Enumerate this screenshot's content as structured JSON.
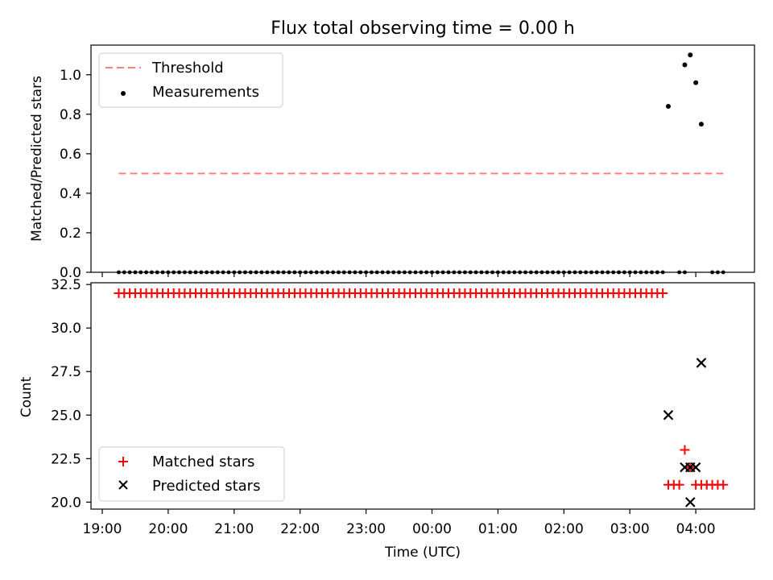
{
  "chart_data": [
    {
      "type": "scatter",
      "title": "Flux total observing time = 0.00 h",
      "ylabel": "Matched/Predicted stars",
      "xlabel": "",
      "ylim": [
        0,
        1.15
      ],
      "y_ticks": [
        "0.0",
        "0.2",
        "0.4",
        "0.6",
        "0.8",
        "1.0"
      ],
      "y_tick_values": [
        0,
        0.2,
        0.4,
        0.6,
        0.8,
        1.0
      ],
      "grid": false,
      "legend_position": "top-left",
      "legend": [
        "Threshold",
        "Measurements"
      ],
      "threshold": {
        "name": "Threshold",
        "value": 0.5,
        "x_range": [
          "19:15",
          "04:25"
        ],
        "color": "#ff7f7f",
        "style": "dashed"
      },
      "series": [
        {
          "name": "Measurements",
          "marker": "dot",
          "color": "#000000",
          "zero_segments": [
            [
              "19:15",
              "20:55",
              5
            ],
            [
              "21:00",
              "03:30",
              5
            ],
            [
              "03:45",
              "03:50",
              5
            ],
            [
              "04:15",
              "04:25",
              5
            ]
          ],
          "points": [
            {
              "x": "03:35",
              "y": 0.84
            },
            {
              "x": "03:50",
              "y": 1.05
            },
            {
              "x": "03:55",
              "y": 1.1
            },
            {
              "x": "04:00",
              "y": 0.96
            },
            {
              "x": "04:05",
              "y": 0.75
            }
          ]
        }
      ]
    },
    {
      "type": "scatter",
      "xlabel": "Time (UTC)",
      "ylabel": "Count",
      "ylim": [
        19.6,
        32.6
      ],
      "y_ticks": [
        "20.0",
        "22.5",
        "25.0",
        "27.5",
        "30.0",
        "32.5"
      ],
      "y_tick_values": [
        20,
        22.5,
        25,
        27.5,
        30,
        32.5
      ],
      "x_ticks": [
        "19:00",
        "20:00",
        "21:00",
        "22:00",
        "23:00",
        "00:00",
        "01:00",
        "02:00",
        "03:00",
        "04:00"
      ],
      "grid": false,
      "legend_position": "lower-left",
      "legend": [
        "Matched stars",
        "Predicted stars"
      ],
      "series": [
        {
          "name": "Matched stars",
          "marker": "plus",
          "color": "#ff0000",
          "segments": [
            {
              "from": "19:15",
              "to": "03:30",
              "step_min": 5,
              "y": 32
            }
          ],
          "points": [
            {
              "x": "03:35",
              "y": 21
            },
            {
              "x": "03:40",
              "y": 21
            },
            {
              "x": "03:45",
              "y": 21
            },
            {
              "x": "03:50",
              "y": 23
            },
            {
              "x": "03:55",
              "y": 22
            },
            {
              "x": "04:00",
              "y": 21
            },
            {
              "x": "04:05",
              "y": 21
            },
            {
              "x": "04:10",
              "y": 21
            },
            {
              "x": "04:15",
              "y": 21
            },
            {
              "x": "04:20",
              "y": 21
            },
            {
              "x": "04:25",
              "y": 21
            }
          ]
        },
        {
          "name": "Predicted stars",
          "marker": "x",
          "color": "#000000",
          "points": [
            {
              "x": "03:35",
              "y": 25
            },
            {
              "x": "03:50",
              "y": 22
            },
            {
              "x": "03:55",
              "y": 22
            },
            {
              "x": "03:55",
              "y": 20
            },
            {
              "x": "04:00",
              "y": 22
            },
            {
              "x": "04:05",
              "y": 28
            }
          ]
        }
      ]
    }
  ]
}
